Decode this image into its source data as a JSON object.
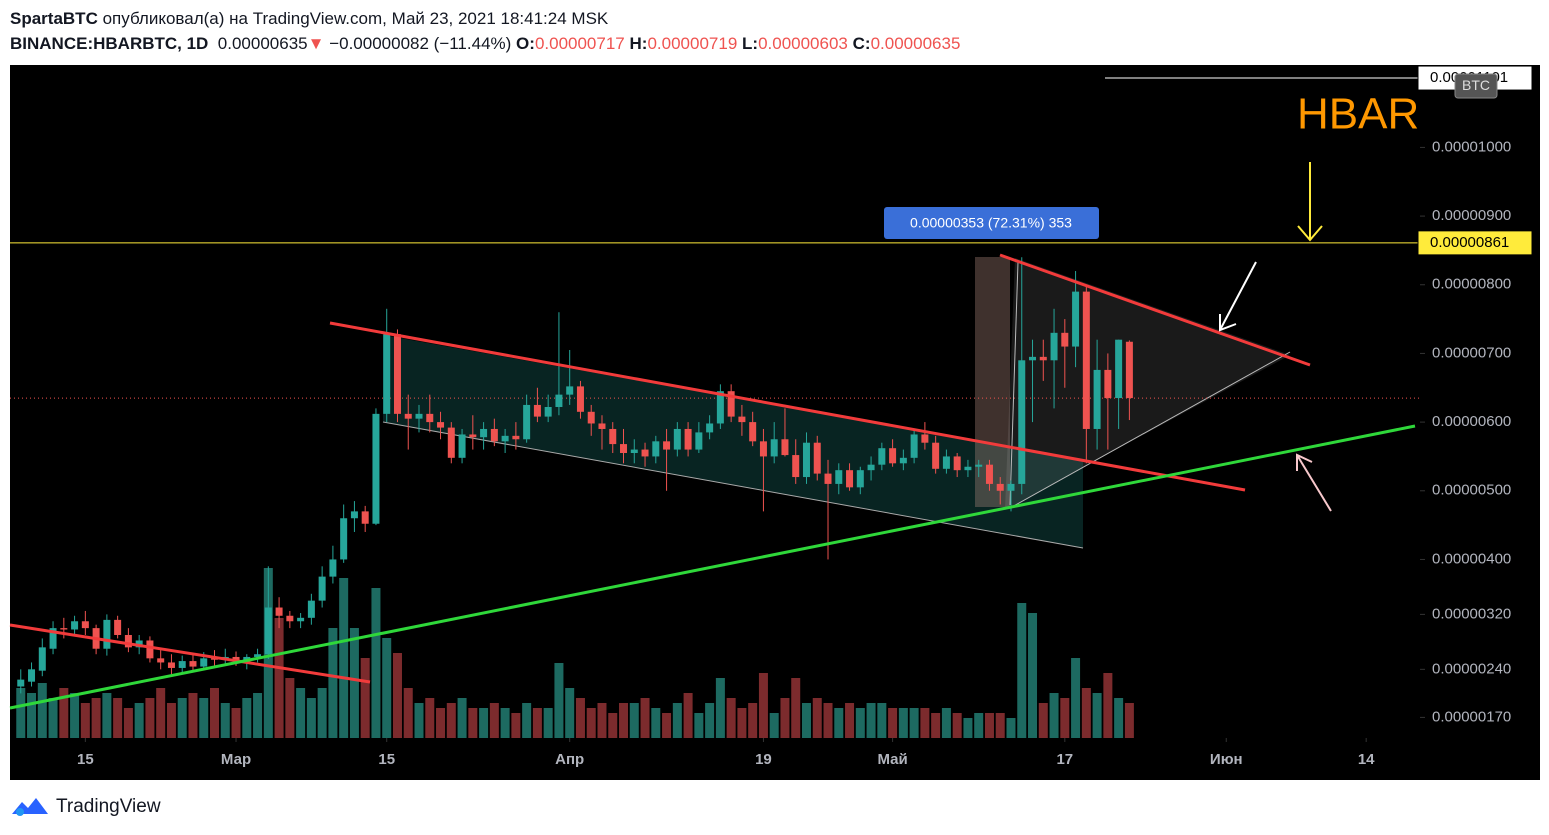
{
  "header": {
    "author": "SpartaBTC",
    "published": "опубликовал(а) на TradingView.com, Май 23, 2021 18:41:24 MSK",
    "symbol": "BINANCE:HBARBTC, 1D",
    "price": "0.00000635",
    "arrow": "▼",
    "change": "−0.00000082 (−11.44%)",
    "ohlc": [
      {
        "key": "O:",
        "value": "0.00000717"
      },
      {
        "key": "H:",
        "value": "0.00000719"
      },
      {
        "key": "L:",
        "value": "0.00000603"
      },
      {
        "key": "C:",
        "value": "0.00000635"
      }
    ]
  },
  "chart_data": {
    "type": "candlestick",
    "annotation": "HBAR",
    "measure_label": "0.00000353 (72.31%) 353",
    "currency": "BTC",
    "up_color": "#26a69a",
    "down_color": "#ef5350",
    "price_lines": [
      {
        "value": 8.61e-06,
        "label": "0.00000861",
        "color": "#ffeb3b"
      },
      {
        "value": 1.101e-05,
        "label": "0.00001101",
        "color": "#ffffff"
      }
    ],
    "xlim": [
      "2021-02-08",
      "2021-06-19"
    ],
    "xticks": [
      {
        "value": "2021-02-15",
        "label": "15"
      },
      {
        "value": "2021-03-01",
        "label": "Мар"
      },
      {
        "value": "2021-03-15",
        "label": "15"
      },
      {
        "value": "2021-04-01",
        "label": "Апр"
      },
      {
        "value": "2021-04-19",
        "label": "19"
      },
      {
        "value": "2021-05-01",
        "label": "Май"
      },
      {
        "value": "2021-05-17",
        "label": "17"
      },
      {
        "value": "2021-06-01",
        "label": "Июн"
      },
      {
        "value": "2021-06-14",
        "label": "14"
      }
    ],
    "ylim": [
      1.4e-06,
      1.12e-05
    ],
    "yticks": [
      {
        "value": 1.7e-06,
        "label": "0.00000170"
      },
      {
        "value": 2.4e-06,
        "label": "0.00000240"
      },
      {
        "value": 3.2e-06,
        "label": "0.00000320"
      },
      {
        "value": 4e-06,
        "label": "0.00000400"
      },
      {
        "value": 5e-06,
        "label": "0.00000500"
      },
      {
        "value": 6e-06,
        "label": "0.00000600"
      },
      {
        "value": 7e-06,
        "label": "0.00000700"
      },
      {
        "value": 8e-06,
        "label": "0.00000800"
      },
      {
        "value": 9e-06,
        "label": "0.00000900"
      },
      {
        "value": 1e-05,
        "label": "0.00001000"
      }
    ],
    "x": [
      "2021-02-09",
      "2021-02-10",
      "2021-02-11",
      "2021-02-12",
      "2021-02-13",
      "2021-02-14",
      "2021-02-15",
      "2021-02-16",
      "2021-02-17",
      "2021-02-18",
      "2021-02-19",
      "2021-02-20",
      "2021-02-21",
      "2021-02-22",
      "2021-02-23",
      "2021-02-24",
      "2021-02-25",
      "2021-02-26",
      "2021-02-27",
      "2021-02-28",
      "2021-03-01",
      "2021-03-02",
      "2021-03-03",
      "2021-03-04",
      "2021-03-05",
      "2021-03-06",
      "2021-03-07",
      "2021-03-08",
      "2021-03-09",
      "2021-03-10",
      "2021-03-11",
      "2021-03-12",
      "2021-03-13",
      "2021-03-14",
      "2021-03-15",
      "2021-03-16",
      "2021-03-17",
      "2021-03-18",
      "2021-03-19",
      "2021-03-20",
      "2021-03-21",
      "2021-03-22",
      "2021-03-23",
      "2021-03-24",
      "2021-03-25",
      "2021-03-26",
      "2021-03-27",
      "2021-03-28",
      "2021-03-29",
      "2021-03-30",
      "2021-03-31",
      "2021-04-01",
      "2021-04-02",
      "2021-04-03",
      "2021-04-04",
      "2021-04-05",
      "2021-04-06",
      "2021-04-07",
      "2021-04-08",
      "2021-04-09",
      "2021-04-10",
      "2021-04-11",
      "2021-04-12",
      "2021-04-13",
      "2021-04-14",
      "2021-04-15",
      "2021-04-16",
      "2021-04-17",
      "2021-04-18",
      "2021-04-19",
      "2021-04-20",
      "2021-04-21",
      "2021-04-22",
      "2021-04-23",
      "2021-04-24",
      "2021-04-25",
      "2021-04-26",
      "2021-04-27",
      "2021-04-28",
      "2021-04-29",
      "2021-04-30",
      "2021-05-01",
      "2021-05-02",
      "2021-05-03",
      "2021-05-04",
      "2021-05-05",
      "2021-05-06",
      "2021-05-07",
      "2021-05-08",
      "2021-05-09",
      "2021-05-10",
      "2021-05-11",
      "2021-05-12",
      "2021-05-13",
      "2021-05-14",
      "2021-05-15",
      "2021-05-16",
      "2021-05-17",
      "2021-05-18",
      "2021-05-19",
      "2021-05-20",
      "2021-05-21",
      "2021-05-22",
      "2021-05-23"
    ],
    "open": [
      2.15e-06,
      2.22e-06,
      2.38e-06,
      2.7e-06,
      3e-06,
      2.98e-06,
      3.1e-06,
      3e-06,
      2.7e-06,
      3.12e-06,
      2.9e-06,
      2.72e-06,
      2.82e-06,
      2.56e-06,
      2.5e-06,
      2.42e-06,
      2.52e-06,
      2.44e-06,
      2.56e-06,
      2.54e-06,
      2.58e-06,
      2.52e-06,
      2.58e-06,
      2.62e-06,
      3.3e-06,
      3.18e-06,
      3.1e-06,
      3.15e-06,
      3.4e-06,
      3.75e-06,
      4e-06,
      4.6e-06,
      4.7e-06,
      4.52e-06,
      6.12e-06,
      7.28e-06,
      6.12e-06,
      6.05e-06,
      6.12e-06,
      6e-06,
      5.92e-06,
      5.48e-06,
      5.82e-06,
      5.78e-06,
      5.9e-06,
      5.72e-06,
      5.8e-06,
      5.75e-06,
      6.25e-06,
      6.08e-06,
      6.22e-06,
      6.4e-06,
      6.52e-06,
      6.15e-06,
      5.98e-06,
      5.9e-06,
      5.68e-06,
      5.55e-06,
      5.6e-06,
      5.5e-06,
      5.72e-06,
      5.6e-06,
      5.9e-06,
      5.6e-06,
      5.85e-06,
      5.98e-06,
      6.45e-06,
      6.08e-06,
      6e-06,
      5.72e-06,
      5.5e-06,
      5.75e-06,
      5.52e-06,
      5.2e-06,
      5.7e-06,
      5.25e-06,
      5.1e-06,
      5.3e-06,
      5.05e-06,
      5.3e-06,
      5.38e-06,
      5.62e-06,
      5.4e-06,
      5.48e-06,
      5.82e-06,
      5.7e-06,
      5.32e-06,
      5.5e-06,
      5.3e-06,
      5.35e-06,
      5.38e-06,
      5.1e-06,
      5e-06,
      5.1e-06,
      6.9e-06,
      6.95e-06,
      6.9e-06,
      7.3e-06,
      7.1e-06,
      7.9e-06,
      5.9e-06,
      6.76e-06,
      6.35e-06,
      7.17e-06
    ],
    "high": [
      2.4e-06,
      2.5e-06,
      2.85e-06,
      3.1e-06,
      3.15e-06,
      3.18e-06,
      3.25e-06,
      3.05e-06,
      3.2e-06,
      3.18e-06,
      3e-06,
      2.9e-06,
      2.88e-06,
      2.68e-06,
      2.62e-06,
      2.6e-06,
      2.62e-06,
      2.65e-06,
      2.68e-06,
      2.7e-06,
      2.66e-06,
      2.62e-06,
      2.7e-06,
      3.9e-06,
      3.45e-06,
      3.25e-06,
      3.22e-06,
      3.5e-06,
      3.9e-06,
      4.2e-06,
      4.8e-06,
      4.85e-06,
      4.78e-06,
      6.2e-06,
      7.65e-06,
      7.35e-06,
      6.4e-06,
      6.25e-06,
      6.4e-06,
      6.15e-06,
      6e-06,
      5.9e-06,
      6.1e-06,
      6e-06,
      6.05e-06,
      5.9e-06,
      6e-06,
      6.4e-06,
      6.5e-06,
      6.4e-06,
      7.6e-06,
      7.05e-06,
      6.6e-06,
      6.25e-06,
      6.1e-06,
      6e-06,
      5.9e-06,
      5.75e-06,
      5.7e-06,
      5.8e-06,
      5.9e-06,
      6e-06,
      6e-06,
      6e-06,
      6.1e-06,
      6.55e-06,
      6.55e-06,
      6.25e-06,
      6.15e-06,
      5.9e-06,
      6e-06,
      6.2e-06,
      5.75e-06,
      5.85e-06,
      5.8e-06,
      5.45e-06,
      5.4e-06,
      5.4e-06,
      5.35e-06,
      5.5e-06,
      5.7e-06,
      5.75e-06,
      5.6e-06,
      5.9e-06,
      6e-06,
      5.8e-06,
      5.6e-06,
      5.55e-06,
      5.45e-06,
      5.45e-06,
      5.45e-06,
      5.2e-06,
      5.15e-06,
      8.4e-06,
      7.2e-06,
      7.2e-06,
      7.65e-06,
      7.5e-06,
      8.2e-06,
      8e-06,
      7.2e-06,
      7e-06,
      7.2e-06,
      7.19e-06
    ],
    "low": [
      2.05e-06,
      2.15e-06,
      2.3e-06,
      2.62e-06,
      2.85e-06,
      2.9e-06,
      2.9e-06,
      2.62e-06,
      2.6e-06,
      2.85e-06,
      2.65e-06,
      2.62e-06,
      2.5e-06,
      2.4e-06,
      2.32e-06,
      2.35e-06,
      2.38e-06,
      2.4e-06,
      2.45e-06,
      2.48e-06,
      2.45e-06,
      2.4e-06,
      2.5e-06,
      2.55e-06,
      3e-06,
      3e-06,
      3e-06,
      3.05e-06,
      3.3e-06,
      3.65e-06,
      3.95e-06,
      4.4e-06,
      4.4e-06,
      4.5e-06,
      6e-06,
      6e-06,
      5.6e-06,
      5.85e-06,
      5.85e-06,
      5.75e-06,
      5.4e-06,
      5.4e-06,
      5.6e-06,
      5.6e-06,
      5.65e-06,
      5.55e-06,
      5.6e-06,
      5.7e-06,
      6e-06,
      6e-06,
      6.1e-06,
      6.25e-06,
      6.05e-06,
      5.8e-06,
      5.6e-06,
      5.55e-06,
      5.4e-06,
      5.4e-06,
      5.35e-06,
      5.4e-06,
      5e-06,
      5.5e-06,
      5.5e-06,
      5.55e-06,
      5.75e-06,
      5.9e-06,
      6e-06,
      5.8e-06,
      5.65e-06,
      4.7e-06,
      5.4e-06,
      5.5e-06,
      5.1e-06,
      5.1e-06,
      5.15e-06,
      4e-06,
      4.95e-06,
      5e-06,
      4.95e-06,
      5.15e-06,
      5.3e-06,
      5.35e-06,
      5.3e-06,
      5.4e-06,
      5.6e-06,
      5.25e-06,
      5.25e-06,
      5.2e-06,
      5.2e-06,
      5.2e-06,
      5e-06,
      4.8e-06,
      4.7e-06,
      4.95e-06,
      6e-06,
      6.6e-06,
      6.2e-06,
      6.5e-06,
      6.8e-06,
      5.4e-06,
      5.6e-06,
      5.6e-06,
      5.9e-06,
      6.03e-06
    ],
    "close": [
      2.25e-06,
      2.4e-06,
      2.72e-06,
      3e-06,
      2.98e-06,
      3.1e-06,
      3e-06,
      2.7e-06,
      3.12e-06,
      2.9e-06,
      2.72e-06,
      2.82e-06,
      2.56e-06,
      2.5e-06,
      2.42e-06,
      2.52e-06,
      2.44e-06,
      2.56e-06,
      2.54e-06,
      2.58e-06,
      2.52e-06,
      2.58e-06,
      2.62e-06,
      3.3e-06,
      3.18e-06,
      3.1e-06,
      3.15e-06,
      3.4e-06,
      3.75e-06,
      4e-06,
      4.6e-06,
      4.7e-06,
      4.52e-06,
      6.12e-06,
      7.28e-06,
      6.12e-06,
      6.05e-06,
      6.12e-06,
      6e-06,
      5.92e-06,
      5.48e-06,
      5.82e-06,
      5.78e-06,
      5.9e-06,
      5.72e-06,
      5.8e-06,
      5.75e-06,
      6.25e-06,
      6.08e-06,
      6.22e-06,
      6.4e-06,
      6.52e-06,
      6.15e-06,
      5.98e-06,
      5.9e-06,
      5.68e-06,
      5.55e-06,
      5.6e-06,
      5.5e-06,
      5.72e-06,
      5.6e-06,
      5.9e-06,
      5.6e-06,
      5.85e-06,
      5.98e-06,
      6.45e-06,
      6.08e-06,
      6e-06,
      5.72e-06,
      5.5e-06,
      5.75e-06,
      5.52e-06,
      5.2e-06,
      5.7e-06,
      5.25e-06,
      5.1e-06,
      5.3e-06,
      5.05e-06,
      5.3e-06,
      5.38e-06,
      5.62e-06,
      5.4e-06,
      5.48e-06,
      5.82e-06,
      5.7e-06,
      5.32e-06,
      5.5e-06,
      5.3e-06,
      5.35e-06,
      5.38e-06,
      5.1e-06,
      5e-06,
      5.1e-06,
      6.9e-06,
      6.95e-06,
      6.9e-06,
      7.3e-06,
      7.1e-06,
      7.9e-06,
      5.9e-06,
      6.76e-06,
      6.35e-06,
      7.2e-06,
      6.35e-06
    ],
    "volume": [
      50,
      45,
      55,
      40,
      50,
      45,
      35,
      40,
      45,
      40,
      30,
      35,
      40,
      50,
      35,
      40,
      45,
      40,
      50,
      35,
      30,
      40,
      45,
      170,
      120,
      60,
      50,
      40,
      50,
      110,
      160,
      110,
      80,
      150,
      100,
      85,
      50,
      35,
      40,
      30,
      35,
      40,
      30,
      30,
      35,
      30,
      25,
      35,
      30,
      30,
      75,
      50,
      40,
      30,
      35,
      25,
      35,
      35,
      40,
      30,
      25,
      35,
      45,
      25,
      35,
      60,
      40,
      30,
      35,
      65,
      25,
      40,
      60,
      35,
      40,
      35,
      30,
      35,
      30,
      35,
      35,
      30,
      30,
      30,
      30,
      25,
      30,
      25,
      20,
      25,
      25,
      25,
      20,
      135,
      125,
      35,
      45,
      40,
      80,
      50,
      45,
      65,
      40,
      35
    ]
  }
}
